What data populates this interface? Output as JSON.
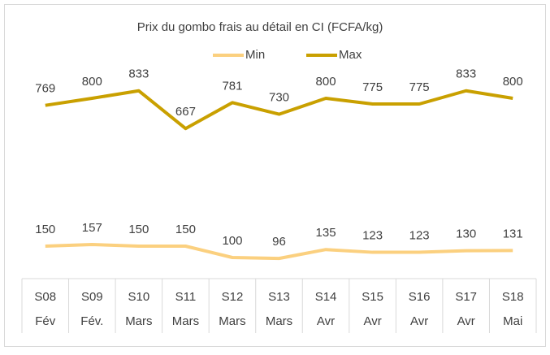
{
  "chart_data": {
    "type": "line",
    "title": "Prix du gombo frais au détail en CI (FCFA/kg)",
    "categories": [
      "S08",
      "S09",
      "S10",
      "S11",
      "S12",
      "S13",
      "S14",
      "S15",
      "S16",
      "S17",
      "S18"
    ],
    "category_groups": [
      "Fév",
      "Fév.",
      "Mars",
      "Mars",
      "Mars",
      "Mars",
      "Avr",
      "Avr",
      "Avr",
      "Avr",
      "Mai"
    ],
    "series": [
      {
        "name": "Min",
        "color": "#fbd07f",
        "values": [
          150,
          157,
          150,
          150,
          100,
          96,
          135,
          123,
          123,
          130,
          131
        ]
      },
      {
        "name": "Max",
        "color": "#c9a000",
        "values": [
          769,
          800,
          833,
          667,
          781,
          730,
          800,
          775,
          775,
          833,
          800
        ]
      }
    ],
    "ylim": [
      0,
      900
    ],
    "legend": "top"
  }
}
